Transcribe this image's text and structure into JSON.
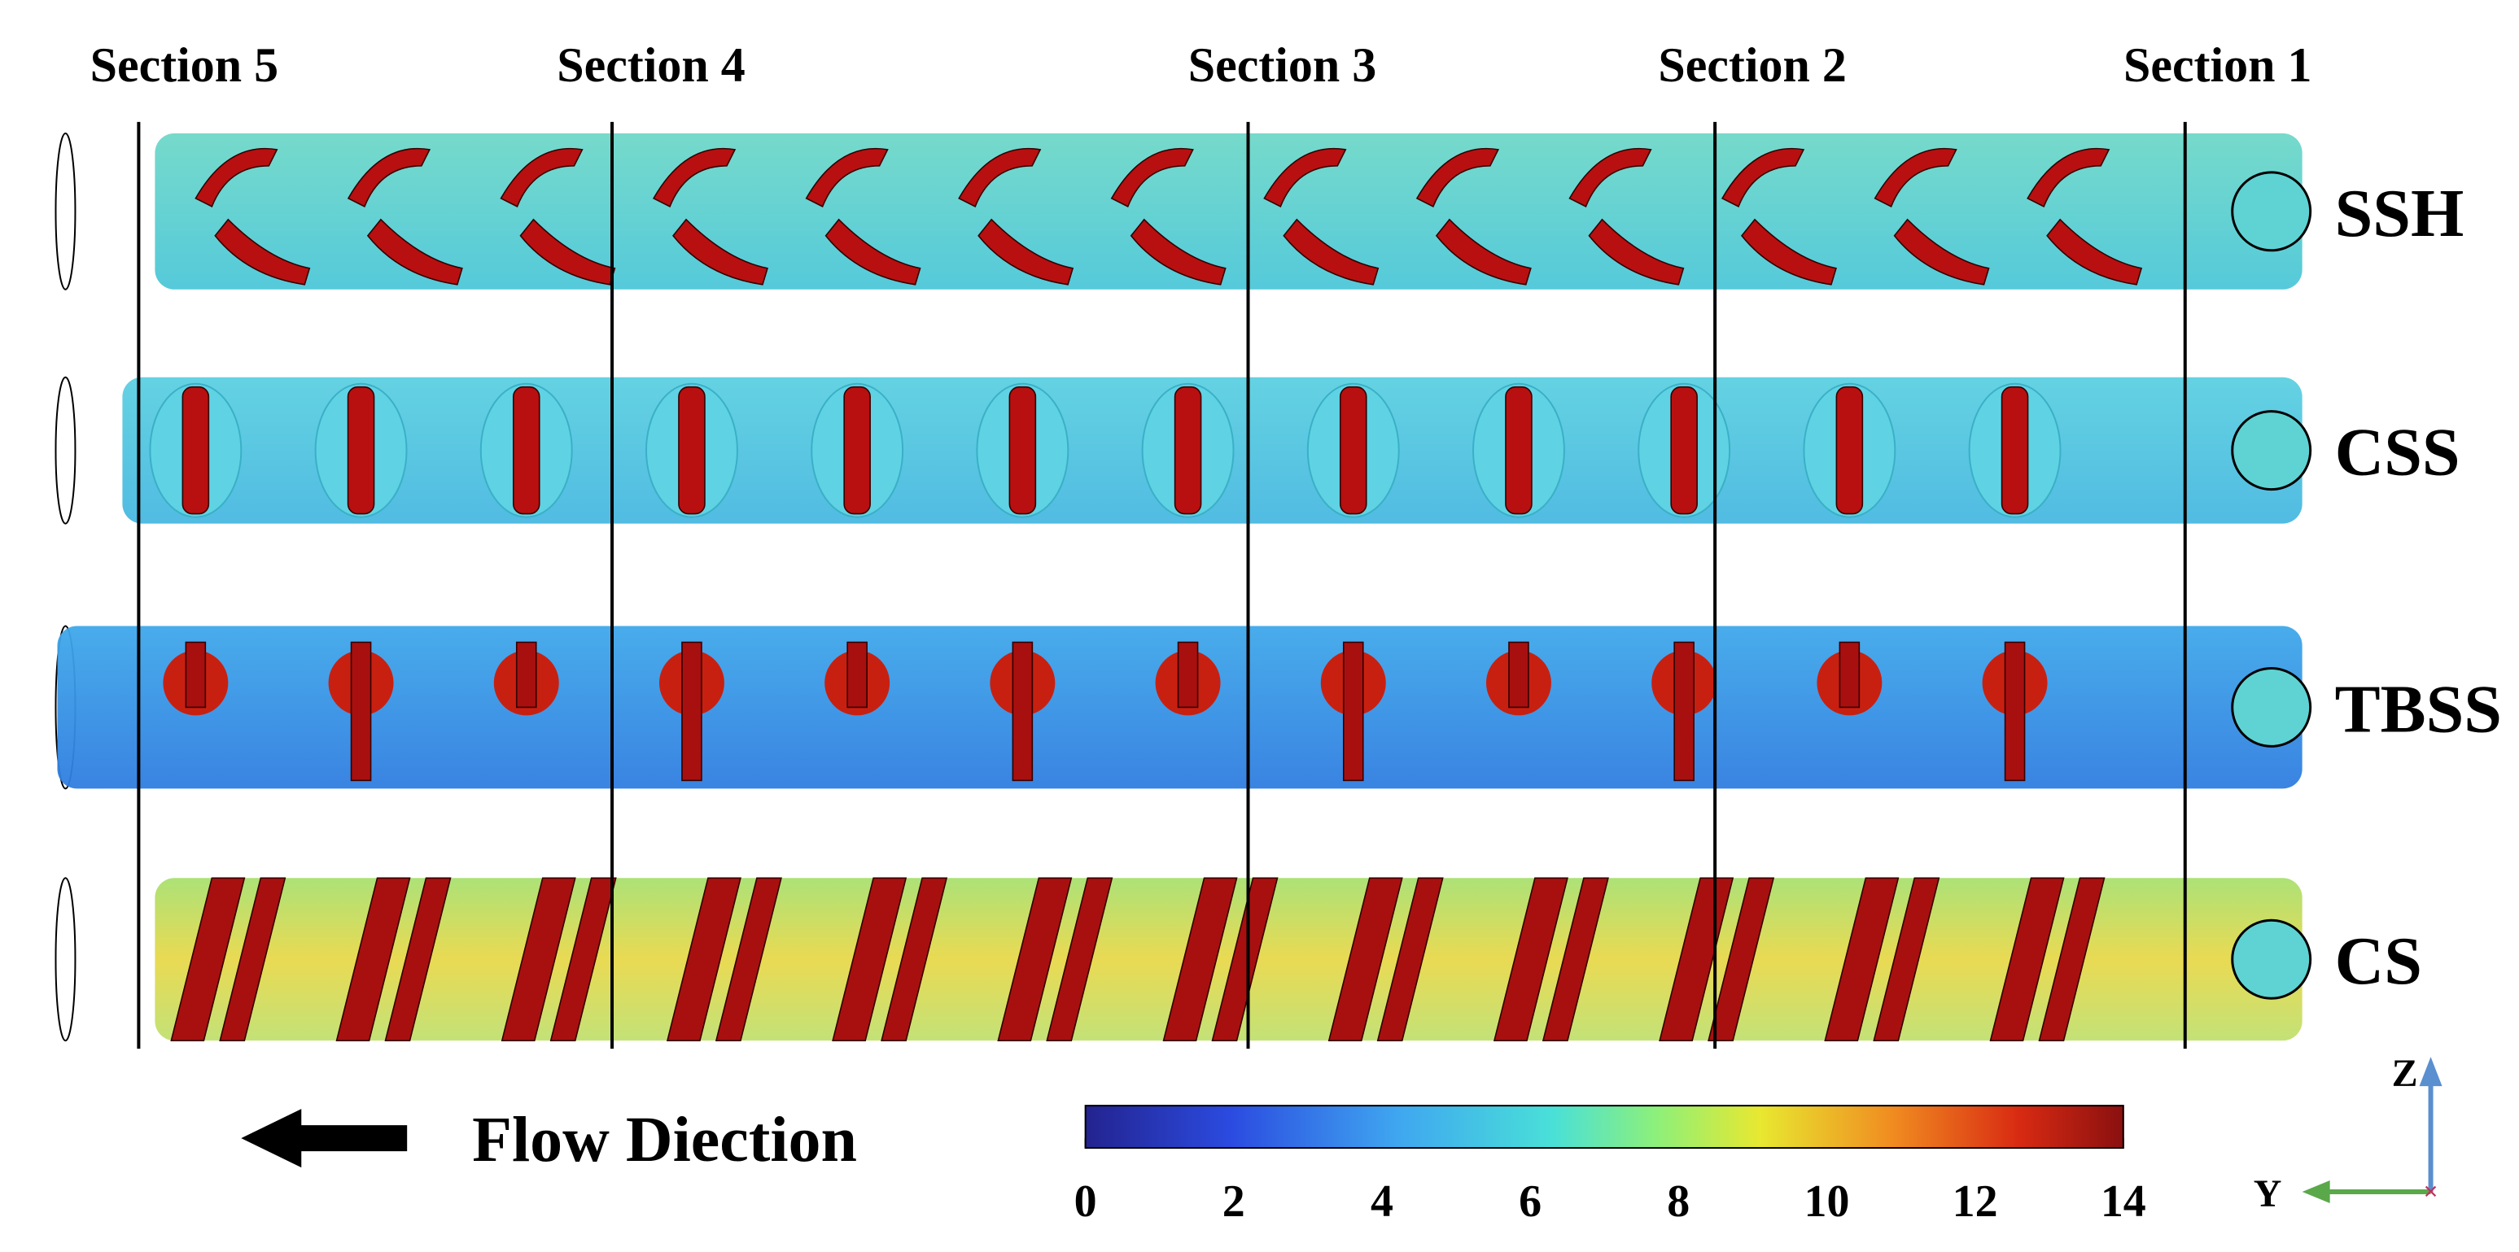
{
  "sections": [
    "Section 5",
    "Section 4",
    "Section 3",
    "Section 2",
    "Section 1"
  ],
  "rows": [
    "SSH",
    "CSS",
    "TBSS",
    "CS"
  ],
  "flow_direction": "Flow Diection",
  "colorbar": {
    "lim": [
      0,
      14
    ],
    "ticks": [
      0,
      2,
      4,
      6,
      8,
      10,
      12,
      14
    ]
  },
  "axes": {
    "z": "Z",
    "y": "Y"
  }
}
